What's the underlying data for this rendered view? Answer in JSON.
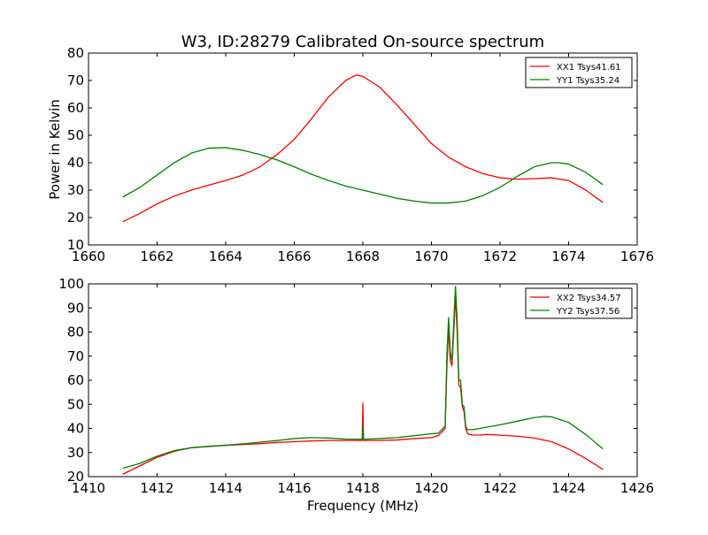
{
  "page": {
    "title": "W3, ID:28279 Calibrated On-source spectrum",
    "ylabel_top": "Power in Kelvin",
    "xlabel_bottom": "Frequency (MHz)"
  },
  "colors": {
    "red": "#ff0000",
    "green": "#008000",
    "axes": "#000000"
  },
  "chart_data": [
    {
      "type": "line",
      "title": "W3, ID:28279 Calibrated On-source spectrum",
      "xlabel": "",
      "ylabel": "Power in Kelvin",
      "xlim": [
        1660,
        1676
      ],
      "ylim": [
        10,
        80
      ],
      "xticks": [
        "1660",
        "1662",
        "1664",
        "1666",
        "1668",
        "1670",
        "1672",
        "1674",
        "1676"
      ],
      "yticks": [
        "10",
        "20",
        "30",
        "40",
        "50",
        "60",
        "70",
        "80"
      ],
      "grid": false,
      "legend_position": "top-right",
      "series": [
        {
          "name": "XX1 Tsys41.61",
          "color": "#ff0000",
          "x": [
            1661.0,
            1661.5,
            1662.0,
            1662.5,
            1663.0,
            1663.5,
            1664.0,
            1664.5,
            1665.0,
            1665.5,
            1666.0,
            1666.5,
            1667.0,
            1667.5,
            1667.8,
            1668.0,
            1668.5,
            1669.0,
            1669.5,
            1670.0,
            1670.5,
            1671.0,
            1671.5,
            1672.0,
            1672.5,
            1673.0,
            1673.5,
            1674.0,
            1674.5,
            1675.0
          ],
          "y": [
            18.5,
            21.5,
            25.0,
            27.8,
            30.0,
            31.8,
            33.5,
            35.5,
            38.5,
            43.0,
            48.5,
            56.0,
            64.0,
            70.0,
            72.0,
            71.5,
            67.5,
            61.0,
            54.0,
            47.0,
            42.0,
            38.5,
            36.0,
            34.5,
            34.0,
            34.2,
            34.5,
            33.5,
            30.0,
            25.5
          ]
        },
        {
          "name": "YY1 Tsys35.24",
          "color": "#008000",
          "x": [
            1661.0,
            1661.5,
            1662.0,
            1662.5,
            1663.0,
            1663.5,
            1664.0,
            1664.5,
            1665.0,
            1665.5,
            1666.0,
            1666.5,
            1667.0,
            1667.5,
            1668.0,
            1668.5,
            1669.0,
            1669.5,
            1670.0,
            1670.5,
            1671.0,
            1671.5,
            1672.0,
            1672.5,
            1673.0,
            1673.5,
            1673.7,
            1674.0,
            1674.5,
            1675.0
          ],
          "y": [
            27.5,
            31.0,
            35.5,
            40.0,
            43.5,
            45.3,
            45.5,
            44.5,
            43.0,
            41.0,
            38.5,
            35.8,
            33.5,
            31.5,
            30.0,
            28.5,
            27.0,
            26.0,
            25.3,
            25.3,
            26.0,
            28.0,
            31.0,
            35.0,
            38.5,
            40.0,
            40.0,
            39.5,
            36.5,
            32.0
          ]
        }
      ]
    },
    {
      "type": "line",
      "title": "",
      "xlabel": "Frequency (MHz)",
      "ylabel": "",
      "xlim": [
        1410,
        1426
      ],
      "ylim": [
        20,
        100
      ],
      "xticks": [
        "1410",
        "1412",
        "1414",
        "1416",
        "1418",
        "1420",
        "1422",
        "1424",
        "1426"
      ],
      "yticks": [
        "20",
        "30",
        "40",
        "50",
        "60",
        "70",
        "80",
        "90",
        "100"
      ],
      "grid": false,
      "legend_position": "top-right",
      "series": [
        {
          "name": "XX2 Tsys34.57",
          "color": "#ff0000",
          "x": [
            1411.0,
            1411.5,
            1412.0,
            1412.5,
            1413.0,
            1413.5,
            1414.0,
            1414.5,
            1415.0,
            1415.5,
            1416.0,
            1416.5,
            1417.0,
            1417.5,
            1417.98,
            1418.0,
            1418.02,
            1418.5,
            1419.0,
            1419.5,
            1420.0,
            1420.2,
            1420.4,
            1420.45,
            1420.5,
            1420.55,
            1420.6,
            1420.65,
            1420.7,
            1420.75,
            1420.8,
            1420.85,
            1420.9,
            1420.95,
            1421.0,
            1421.05,
            1421.1,
            1421.2,
            1421.4,
            1421.6,
            1422.0,
            1422.5,
            1423.0,
            1423.5,
            1424.0,
            1424.5,
            1425.0
          ],
          "y": [
            21.0,
            24.5,
            28.0,
            30.5,
            32.0,
            32.6,
            33.0,
            33.3,
            33.7,
            34.2,
            34.5,
            34.8,
            35.0,
            35.0,
            35.0,
            50.5,
            35.0,
            35.0,
            35.2,
            35.8,
            36.2,
            37.0,
            40.0,
            65.0,
            82.0,
            68.0,
            66.0,
            80.0,
            95.0,
            80.0,
            58.0,
            57.0,
            49.0,
            47.0,
            40.0,
            38.0,
            37.5,
            37.3,
            37.2,
            37.5,
            37.2,
            36.8,
            36.0,
            34.5,
            31.5,
            27.5,
            23.0
          ]
        },
        {
          "name": "YY2 Tsys37.56",
          "color": "#008000",
          "x": [
            1411.0,
            1411.5,
            1412.0,
            1412.5,
            1413.0,
            1413.5,
            1414.0,
            1414.5,
            1415.0,
            1415.5,
            1416.0,
            1416.5,
            1417.0,
            1417.5,
            1417.98,
            1418.0,
            1418.02,
            1418.5,
            1419.0,
            1419.5,
            1420.0,
            1420.2,
            1420.4,
            1420.45,
            1420.5,
            1420.55,
            1420.6,
            1420.65,
            1420.7,
            1420.75,
            1420.8,
            1420.85,
            1420.9,
            1420.95,
            1421.0,
            1421.05,
            1421.1,
            1421.2,
            1421.4,
            1421.6,
            1422.0,
            1422.5,
            1423.0,
            1423.3,
            1423.5,
            1424.0,
            1424.5,
            1425.0
          ],
          "y": [
            23.5,
            25.5,
            28.5,
            30.8,
            32.0,
            32.5,
            33.0,
            33.6,
            34.3,
            35.0,
            35.8,
            36.2,
            36.0,
            35.6,
            35.5,
            41.0,
            35.5,
            35.8,
            36.2,
            37.0,
            37.8,
            38.0,
            41.0,
            70.0,
            86.0,
            72.0,
            68.0,
            84.0,
            99.0,
            85.0,
            60.0,
            60.0,
            50.0,
            49.0,
            41.0,
            39.5,
            39.5,
            39.5,
            40.0,
            40.5,
            41.5,
            43.0,
            44.5,
            45.0,
            44.8,
            42.5,
            37.5,
            31.5
          ]
        }
      ]
    }
  ]
}
